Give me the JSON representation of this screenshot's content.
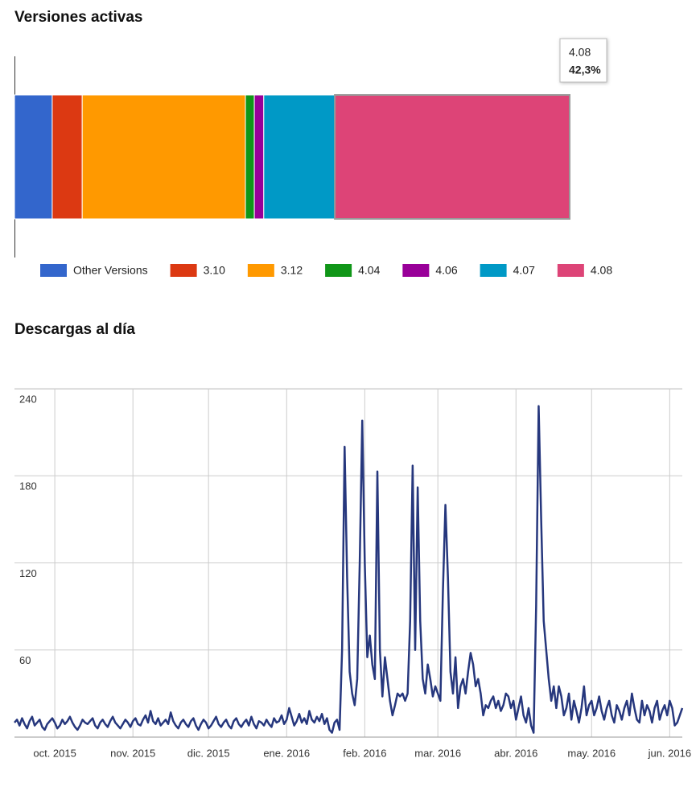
{
  "chart_data": [
    {
      "type": "bar",
      "orientation": "horizontal",
      "stacked": true,
      "title": "Versiones activas",
      "xlim": [
        0,
        100
      ],
      "legend": "bottom",
      "series": [
        {
          "name": "Other Versions",
          "color": "#3366cc",
          "values": [
            6.8
          ]
        },
        {
          "name": "3.10",
          "color": "#dc3912",
          "values": [
            5.4
          ]
        },
        {
          "name": "3.12",
          "color": "#ff9900",
          "values": [
            29.4
          ]
        },
        {
          "name": "4.04",
          "color": "#109618",
          "values": [
            1.6
          ]
        },
        {
          "name": "4.06",
          "color": "#990099",
          "values": [
            1.7
          ]
        },
        {
          "name": "4.07",
          "color": "#0099c6",
          "values": [
            12.8
          ]
        },
        {
          "name": "4.08",
          "color": "#dd4477",
          "values": [
            42.3
          ],
          "value_labels": [
            "42,3%"
          ]
        }
      ],
      "tooltip_series": 6
    },
    {
      "type": "line",
      "title": "Descargas al día",
      "grid": true,
      "color": "#26377d",
      "ylim": [
        0,
        240
      ],
      "yticks": [
        60,
        120,
        180,
        240
      ],
      "xlim": [
        0,
        265
      ],
      "xticks": [
        {
          "value": 16,
          "label": "oct. 2015"
        },
        {
          "value": 47,
          "label": "nov. 2015"
        },
        {
          "value": 77,
          "label": "dic. 2015"
        },
        {
          "value": 108,
          "label": "ene. 2016"
        },
        {
          "value": 139,
          "label": "feb. 2016"
        },
        {
          "value": 168,
          "label": "mar. 2016"
        },
        {
          "value": 199,
          "label": "abr. 2016"
        },
        {
          "value": 229,
          "label": "may. 2016"
        },
        {
          "value": 260,
          "label": "jun. 2016"
        }
      ],
      "values": [
        10,
        12,
        8,
        13,
        9,
        6,
        11,
        14,
        8,
        10,
        12,
        7,
        5,
        9,
        11,
        13,
        10,
        6,
        8,
        12,
        9,
        11,
        14,
        10,
        7,
        5,
        8,
        12,
        10,
        9,
        11,
        13,
        8,
        6,
        10,
        12,
        9,
        7,
        11,
        14,
        10,
        8,
        6,
        9,
        12,
        10,
        7,
        11,
        13,
        9,
        8,
        12,
        15,
        10,
        18,
        11,
        9,
        13,
        8,
        10,
        12,
        9,
        17,
        11,
        8,
        6,
        10,
        12,
        9,
        7,
        11,
        13,
        8,
        5,
        9,
        12,
        10,
        6,
        8,
        11,
        14,
        9,
        7,
        10,
        12,
        8,
        6,
        11,
        13,
        9,
        7,
        10,
        12,
        8,
        14,
        9,
        6,
        11,
        10,
        8,
        12,
        9,
        7,
        13,
        10,
        11,
        15,
        9,
        12,
        20,
        14,
        8,
        11,
        16,
        10,
        13,
        9,
        18,
        12,
        10,
        14,
        11,
        16,
        9,
        13,
        5,
        3,
        10,
        12,
        5,
        60,
        200,
        110,
        45,
        30,
        22,
        40,
        120,
        218,
        120,
        55,
        70,
        50,
        40,
        183,
        60,
        28,
        55,
        40,
        25,
        15,
        22,
        30,
        28,
        30,
        25,
        30,
        80,
        187,
        60,
        172,
        80,
        40,
        30,
        50,
        40,
        28,
        35,
        30,
        25,
        100,
        160,
        110,
        45,
        30,
        55,
        20,
        35,
        40,
        30,
        45,
        58,
        50,
        35,
        40,
        30,
        15,
        22,
        20,
        25,
        28,
        20,
        25,
        18,
        22,
        30,
        28,
        20,
        25,
        12,
        20,
        28,
        15,
        10,
        20,
        8,
        3,
        90,
        228,
        150,
        80,
        60,
        40,
        25,
        35,
        20,
        35,
        28,
        15,
        20,
        30,
        12,
        25,
        18,
        10,
        20,
        35,
        15,
        22,
        25,
        15,
        20,
        28,
        18,
        12,
        20,
        25,
        15,
        10,
        22,
        18,
        12,
        20,
        25,
        15,
        30,
        20,
        12,
        10,
        25,
        15,
        22,
        18,
        10,
        20,
        25,
        12,
        18,
        22,
        15,
        25,
        20,
        8,
        10,
        15,
        20
      ]
    }
  ]
}
